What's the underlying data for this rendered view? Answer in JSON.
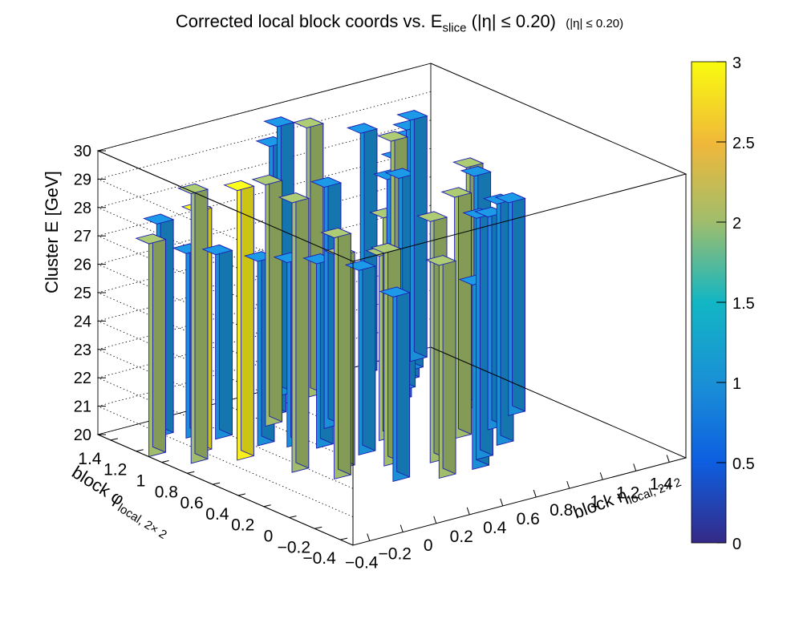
{
  "chart_data": {
    "type": "lego3d",
    "title": "Corrected local block coords vs. E",
    "title_sub": "slice",
    "title_suffix": " (|η| ≤ 0.20)",
    "title_note": "(|η| ≤ 0.20)",
    "xlabel": "block η",
    "xlabel_sub": "local, 2× 2",
    "ylabel": "block φ",
    "ylabel_sub": "local, 2× 2",
    "zlabel": "Cluster E  [GeV]",
    "xlim": [
      -0.5,
      1.5
    ],
    "ylim": [
      -0.5,
      1.5
    ],
    "zlim": [
      20,
      30
    ],
    "x_ticks": [
      "−0.4",
      "−0.2",
      "0",
      "0.2",
      "0.4",
      "0.6",
      "0.8",
      "1",
      "1.2",
      "1.4"
    ],
    "y_ticks": [
      "−0.4",
      "−0.2",
      "0",
      "0.2",
      "0.4",
      "0.6",
      "0.8",
      "1",
      "1.2",
      "1.4"
    ],
    "z_ticks": [
      "20",
      "21",
      "22",
      "23",
      "24",
      "25",
      "26",
      "27",
      "28",
      "29",
      "30"
    ],
    "palette_ticks": [
      "0",
      "0.5",
      "1",
      "1.5",
      "2",
      "2.5",
      "3"
    ],
    "palette_range": [
      0,
      3
    ],
    "colors": {
      "count1": "#1a8fd6",
      "count2": "#a1bd6b",
      "count3": "#f9ef1a",
      "edge": "#1c1cb0"
    },
    "bins": [
      {
        "x": -0.45,
        "y": 1.15,
        "z": 27.5,
        "count": 2
      },
      {
        "x": -0.35,
        "y": 0.95,
        "z": 29.5,
        "count": 2
      },
      {
        "x": -0.25,
        "y": 1.05,
        "z": 28.5,
        "count": 3
      },
      {
        "x": -0.15,
        "y": 0.85,
        "z": 29.5,
        "count": 3
      },
      {
        "x": -0.05,
        "y": 0.55,
        "z": 29.5,
        "count": 2
      },
      {
        "x": 0.05,
        "y": 0.35,
        "z": 28.5,
        "count": 2
      },
      {
        "x": 0.15,
        "y": 0.45,
        "z": 27.5,
        "count": 2
      },
      {
        "x": 0.25,
        "y": 0.15,
        "z": 26.5,
        "count": 1
      },
      {
        "x": 0.35,
        "y": 0.35,
        "z": 27.5,
        "count": 2
      },
      {
        "x": 0.45,
        "y": 0.05,
        "z": 27.5,
        "count": 2
      },
      {
        "x": 0.55,
        "y": 0.25,
        "z": 28.5,
        "count": 2
      },
      {
        "x": 0.65,
        "y": 0.05,
        "z": 26.5,
        "count": 1
      },
      {
        "x": 0.75,
        "y": 0.15,
        "z": 28.5,
        "count": 1
      },
      {
        "x": 0.85,
        "y": 0.45,
        "z": 28.5,
        "count": 2
      },
      {
        "x": 0.95,
        "y": 0.25,
        "z": 28.5,
        "count": 1
      },
      {
        "x": 1.05,
        "y": 0.45,
        "z": 27.5,
        "count": 1
      },
      {
        "x": 1.15,
        "y": 0.75,
        "z": 28.5,
        "count": 2
      },
      {
        "x": 1.25,
        "y": 0.55,
        "z": 27.5,
        "count": 1
      },
      {
        "x": 1.35,
        "y": 0.95,
        "z": 27.5,
        "count": 1
      },
      {
        "x": -0.25,
        "y": 1.35,
        "z": 27.5,
        "count": 1
      },
      {
        "x": -0.15,
        "y": 1.25,
        "z": 26.5,
        "count": 1
      },
      {
        "x": -0.05,
        "y": 1.15,
        "z": 26.5,
        "count": 1
      },
      {
        "x": 0.05,
        "y": 0.95,
        "z": 26.5,
        "count": 1
      },
      {
        "x": 0.15,
        "y": 0.85,
        "z": 26.5,
        "count": 1
      },
      {
        "x": 0.25,
        "y": 0.75,
        "z": 26.5,
        "count": 1
      },
      {
        "x": 0.35,
        "y": 0.55,
        "z": 26.5,
        "count": 1
      },
      {
        "x": 0.45,
        "y": 0.95,
        "z": 28.5,
        "count": 1
      },
      {
        "x": 0.55,
        "y": 0.65,
        "z": 26.5,
        "count": 2
      },
      {
        "x": 0.65,
        "y": 0.75,
        "z": 27.5,
        "count": 2
      },
      {
        "x": 0.75,
        "y": 0.85,
        "z": 28.5,
        "count": 1
      },
      {
        "x": 0.85,
        "y": 0.95,
        "z": 29.5,
        "count": 2
      },
      {
        "x": 0.95,
        "y": 1.05,
        "z": 28.5,
        "count": 1
      },
      {
        "x": 1.05,
        "y": 1.15,
        "z": 27.5,
        "count": 1
      },
      {
        "x": 1.15,
        "y": 1.25,
        "z": 28.5,
        "count": 1
      },
      {
        "x": 1.25,
        "y": 1.35,
        "z": 28.5,
        "count": 1
      },
      {
        "x": 1.35,
        "y": 1.45,
        "z": 28.5,
        "count": 1
      },
      {
        "x": 0.35,
        "y": 1.25,
        "z": 29.5,
        "count": 1
      },
      {
        "x": 0.55,
        "y": 1.45,
        "z": 29.5,
        "count": 1
      },
      {
        "x": 0.25,
        "y": 1.15,
        "z": 28.5,
        "count": 2
      },
      {
        "x": 0.65,
        "y": 1.35,
        "z": 29.5,
        "count": 2
      },
      {
        "x": 1.05,
        "y": 1.45,
        "z": 28.5,
        "count": 1
      }
    ]
  }
}
